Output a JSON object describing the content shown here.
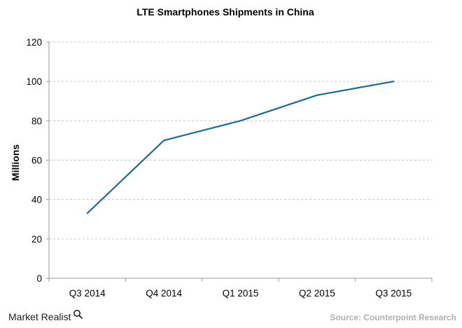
{
  "chart_data": {
    "type": "line",
    "title": "LTE Smartphones Shipments in China",
    "xlabel": "",
    "ylabel": "Millions",
    "categories": [
      "Q3 2014",
      "Q4 2014",
      "Q1 2015",
      "Q2 2015",
      "Q3 2015"
    ],
    "series": [
      {
        "values": [
          33,
          70,
          80,
          93,
          100
        ]
      }
    ],
    "ylim": [
      0,
      120
    ],
    "yticks": [
      "0",
      "20",
      "40",
      "60",
      "80",
      "100",
      "120"
    ],
    "grid": "horizontal dashed",
    "legend": "none",
    "colors": {
      "line": "#1f6a8f",
      "grid": "#c8c8c8",
      "axis": "#9a9a9a",
      "source_text": "#b0b0b0"
    }
  },
  "footer": {
    "brand": "Market Realist",
    "brand_icon": "magnifier-icon",
    "source": "Source: Counterpoint Research"
  }
}
